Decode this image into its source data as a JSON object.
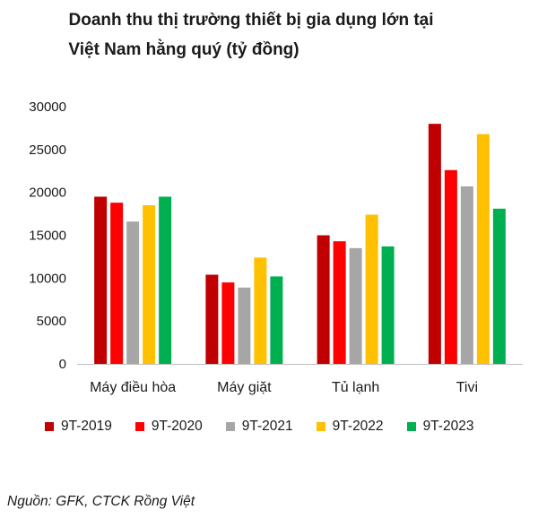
{
  "title": {
    "line1": "Doanh thu thị trường thiết bị gia dụng  lớn tại",
    "line2": "Việt Nam hằng quý (tỷ đồng)"
  },
  "source": "Nguồn: GFK, CTCK Rồng Việt",
  "chart_data": {
    "type": "bar",
    "title": "Doanh thu thị trường thiết bị gia dụng  lớn tại Việt Nam hằng quý (tỷ đồng)",
    "categories": [
      "Máy điều hòa",
      "Máy giặt",
      "Tủ lạnh",
      "Tivi"
    ],
    "ylim": [
      0,
      30000
    ],
    "yticks": [
      0,
      5000,
      10000,
      15000,
      20000,
      25000,
      30000
    ],
    "grid": false,
    "legend_position": "bottom",
    "series": [
      {
        "name": "9T-2019",
        "color": "#c00000",
        "values": [
          19500,
          10400,
          15000,
          28000
        ]
      },
      {
        "name": "9T-2020",
        "color": "#ff0000",
        "values": [
          18800,
          9500,
          14300,
          22600
        ]
      },
      {
        "name": "9T-2021",
        "color": "#a6a6a6",
        "values": [
          16600,
          8900,
          13500,
          20700
        ]
      },
      {
        "name": "9T-2022",
        "color": "#ffc000",
        "values": [
          18500,
          12400,
          17400,
          26800
        ]
      },
      {
        "name": "9T-2023",
        "color": "#00b050",
        "values": [
          19500,
          10200,
          13700,
          18100
        ]
      }
    ]
  }
}
